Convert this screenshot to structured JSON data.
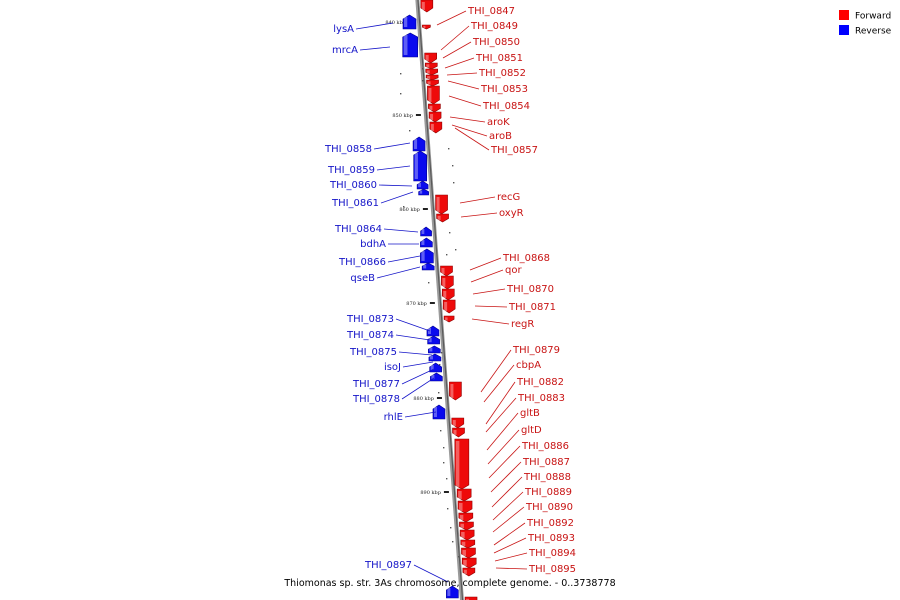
{
  "legend": [
    {
      "label": "Forward",
      "color": "#ff0000"
    },
    {
      "label": "Reverse",
      "color": "#0000ff"
    }
  ],
  "caption": "Thiomonas sp. str. 3As chromosome, complete genome. - 0..3738778",
  "ticks": [
    "840 kbp",
    "850 kbp",
    "860 kbp",
    "870 kbp",
    "880 kbp",
    "890 kbp"
  ],
  "reverse_genes": [
    "lysA",
    "mrcA",
    "THI_0858",
    "THI_0859",
    "THI_0860",
    "THI_0861",
    "THI_0864",
    "bdhA",
    "THI_0866",
    "qseB",
    "THI_0873",
    "THI_0874",
    "THI_0875",
    "isoJ",
    "THI_0877",
    "THI_0878",
    "rhlE",
    "THI_0897"
  ],
  "forward_genes": [
    "THI_0847",
    "THI_0849",
    "THI_0850",
    "THI_0851",
    "THI_0852",
    "THI_0853",
    "THI_0854",
    "aroK",
    "aroB",
    "THI_0857",
    "recG",
    "oxyR",
    "THI_0868",
    "qor",
    "THI_0870",
    "THI_0871",
    "regR",
    "THI_0879",
    "cbpA",
    "THI_0882",
    "THI_0883",
    "gltB",
    "gltD",
    "THI_0886",
    "THI_0887",
    "THI_0888",
    "THI_0889",
    "THI_0890",
    "THI_0892",
    "THI_0893",
    "THI_0894",
    "THI_0895"
  ]
}
